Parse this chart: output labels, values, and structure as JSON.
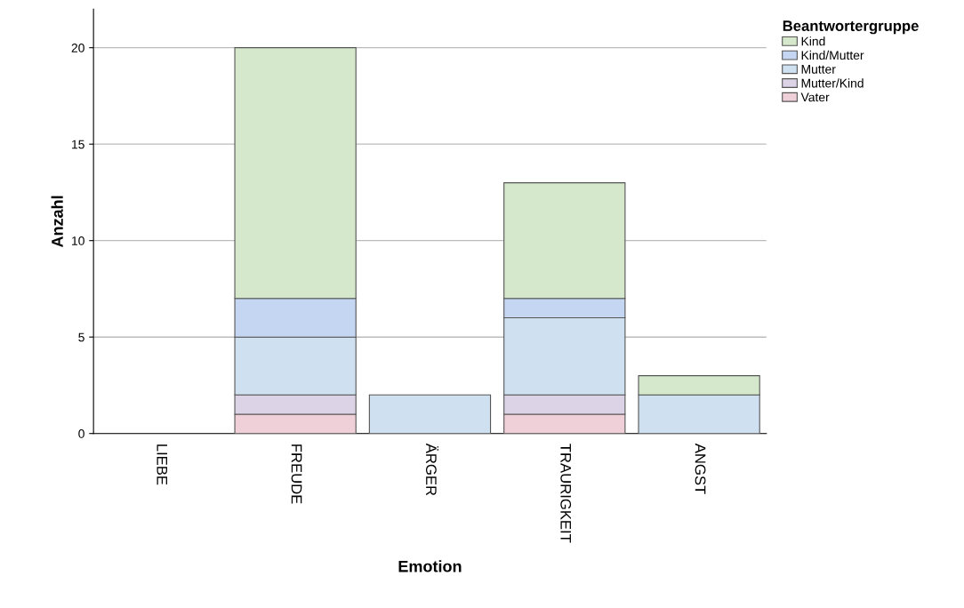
{
  "chart_data": {
    "type": "bar",
    "stacked": true,
    "xlabel": "Emotion",
    "ylabel": "Anzahl",
    "legend_title": "Beantwortergruppe",
    "legend": "top right",
    "grid": "y",
    "categories": [
      "LIEBE",
      "FREUDE",
      "ÄRGER",
      "TRAURIGKEIT",
      "ANGST"
    ],
    "ylim": [
      0,
      22
    ],
    "yticks": [
      0,
      5,
      10,
      15,
      20
    ],
    "series": [
      {
        "name": "Vater",
        "color": "#efcfd8",
        "values": [
          null,
          1,
          null,
          1,
          null
        ]
      },
      {
        "name": "Mutter/Kind",
        "color": "#dcd3e6",
        "values": [
          null,
          1,
          null,
          1,
          null
        ]
      },
      {
        "name": "Mutter",
        "color": "#cfe0f1",
        "values": [
          null,
          3,
          2,
          4,
          2
        ]
      },
      {
        "name": "Kind/Mutter",
        "color": "#c5d6f2",
        "values": [
          null,
          2,
          null,
          1,
          null
        ]
      },
      {
        "name": "Kind",
        "color": "#d5e8cc",
        "values": [
          null,
          13,
          null,
          6,
          1
        ]
      }
    ]
  }
}
